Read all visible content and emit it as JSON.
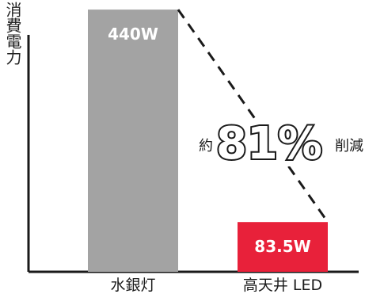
{
  "chart_data": {
    "type": "bar",
    "ylabel": "消費電力",
    "categories": [
      "水銀灯",
      "高天井 LED"
    ],
    "values": [
      440,
      83.5
    ],
    "data_labels": [
      "440W",
      "83.5W"
    ],
    "ylim": [
      0,
      480
    ],
    "grid": false,
    "legend": "none",
    "colors": [
      "#a3a3a3",
      "#e8213a"
    ],
    "annotation": {
      "prefix": "約",
      "value": "81%",
      "suffix": "削減"
    }
  }
}
